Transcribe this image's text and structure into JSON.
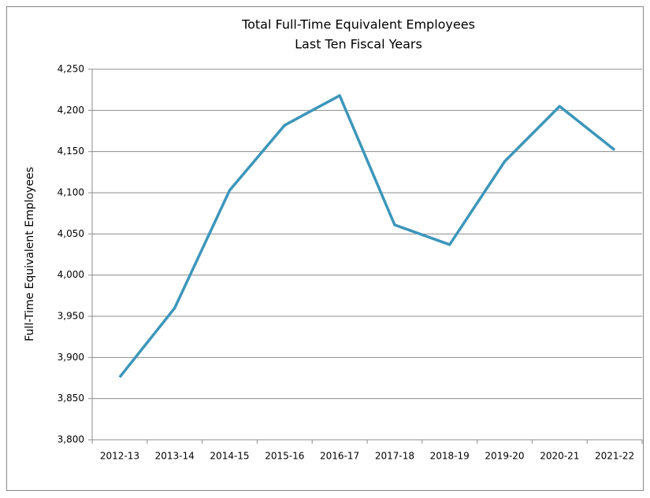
{
  "chart_data": {
    "type": "line",
    "title": "Total Full-Time Equivalent Employees",
    "subtitle": "Last Ten Fiscal Years",
    "y_label": "Full-Time Equivalent Employees",
    "categories": [
      "2012-13",
      "2013-14",
      "2014-15",
      "2015-16",
      "2016-17",
      "2017-18",
      "2018-19",
      "2019-20",
      "2020-21",
      "2021-22"
    ],
    "series": [
      {
        "name": "Full-Time Equivalent Employees",
        "color": "#3d96ba",
        "values": [
          3876,
          3960,
          4103,
          4182,
          4218,
          4061,
          4037,
          4138,
          4205,
          4152
        ]
      }
    ],
    "ylim": [
      3800,
      4250
    ],
    "yticks": [
      {
        "value": 3800,
        "label": "3,800"
      },
      {
        "value": 3850,
        "label": "3,850"
      },
      {
        "value": 3900,
        "label": "3,900"
      },
      {
        "value": 3950,
        "label": "3,950"
      },
      {
        "value": 4000,
        "label": "4,000"
      },
      {
        "value": 4050,
        "label": "4,050"
      },
      {
        "value": 4100,
        "label": "4,100"
      },
      {
        "value": 4150,
        "label": "4,150"
      },
      {
        "value": 4200,
        "label": "4,200"
      },
      {
        "value": 4250,
        "label": "4,250"
      }
    ],
    "grid": true
  }
}
